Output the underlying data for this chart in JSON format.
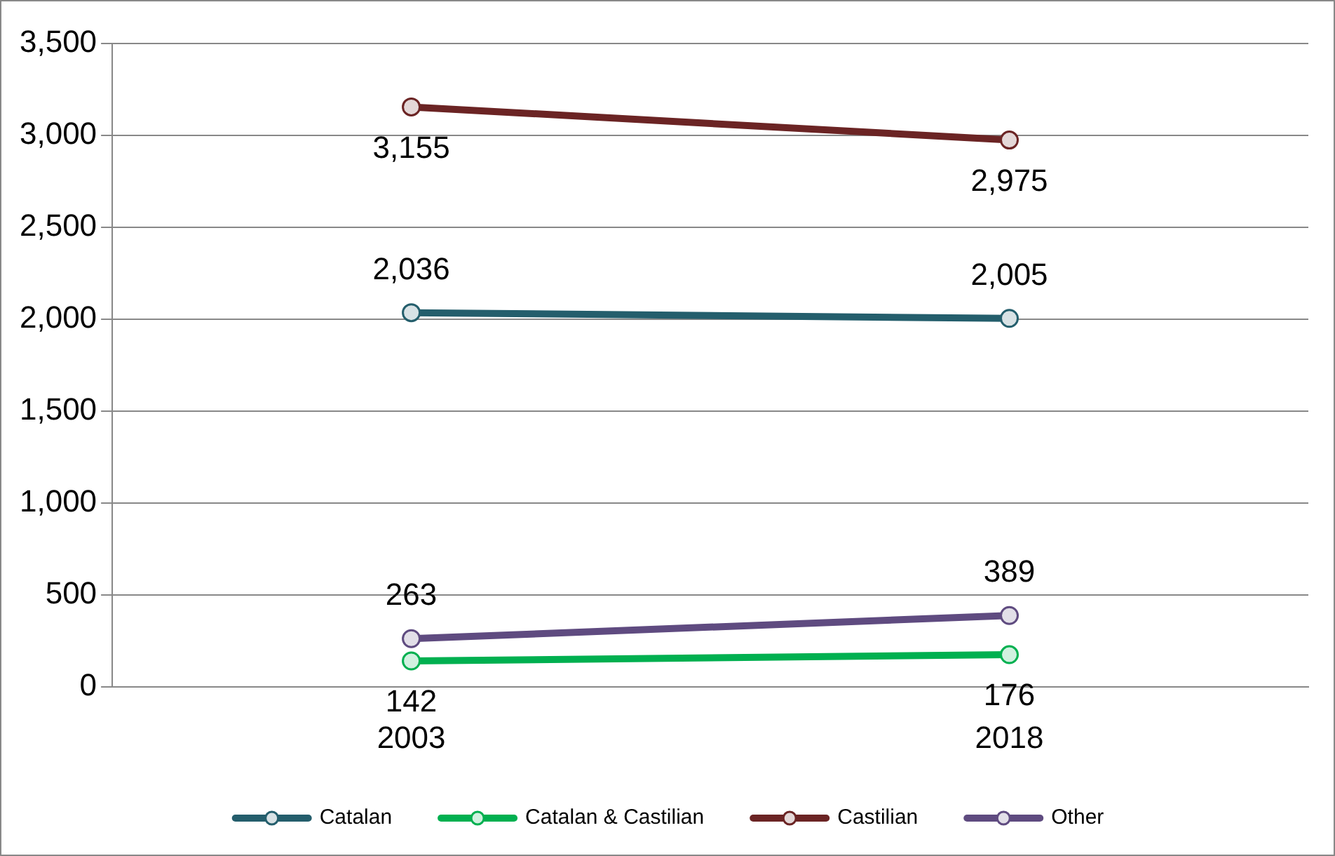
{
  "chart_data": {
    "type": "line",
    "categories": [
      "2003",
      "2018"
    ],
    "series": [
      {
        "name": "Catalan",
        "color": "#245e6c",
        "values": [
          2036,
          2005
        ],
        "value_labels": [
          "2,036",
          "2,005"
        ]
      },
      {
        "name": "Catalan & Castilian",
        "color": "#00b050",
        "values": [
          142,
          176
        ],
        "value_labels": [
          "142",
          "176"
        ]
      },
      {
        "name": "Castilian",
        "color": "#6b2424",
        "values": [
          3155,
          2975
        ],
        "value_labels": [
          "3,155",
          "2,975"
        ]
      },
      {
        "name": "Other",
        "color": "#5f4b80",
        "values": [
          263,
          389
        ],
        "value_labels": [
          "263",
          "389"
        ]
      }
    ],
    "ylim": [
      0,
      3500
    ],
    "yticks": [
      {
        "value": 0,
        "label": "0"
      },
      {
        "value": 500,
        "label": "500"
      },
      {
        "value": 1000,
        "label": "1,000"
      },
      {
        "value": 1500,
        "label": "1,500"
      },
      {
        "value": 2000,
        "label": "2,000"
      },
      {
        "value": 2500,
        "label": "2,500"
      },
      {
        "value": 3000,
        "label": "3,000"
      },
      {
        "value": 3500,
        "label": "3,500"
      }
    ],
    "grid": "y",
    "legend": "bottom",
    "marker": "circle",
    "line_style": "solid"
  }
}
